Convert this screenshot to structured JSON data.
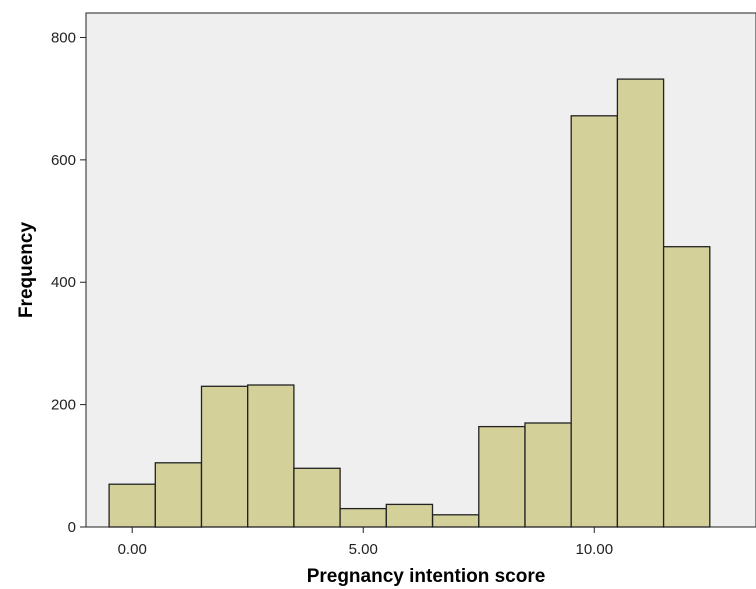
{
  "chart_data": {
    "type": "bar",
    "subtype": "histogram",
    "title": "",
    "xlabel": "Pregnancy intention score",
    "ylabel": "Frequency",
    "bin_width": 1,
    "bins": [
      {
        "start": -0.5,
        "end": 0.5,
        "value": 70
      },
      {
        "start": 0.5,
        "end": 1.5,
        "value": 105
      },
      {
        "start": 1.5,
        "end": 2.5,
        "value": 230
      },
      {
        "start": 2.5,
        "end": 3.5,
        "value": 232
      },
      {
        "start": 3.5,
        "end": 4.5,
        "value": 96
      },
      {
        "start": 4.5,
        "end": 5.5,
        "value": 30
      },
      {
        "start": 5.5,
        "end": 6.5,
        "value": 37
      },
      {
        "start": 6.5,
        "end": 7.5,
        "value": 20
      },
      {
        "start": 7.5,
        "end": 8.5,
        "value": 164
      },
      {
        "start": 8.5,
        "end": 9.5,
        "value": 170
      },
      {
        "start": 9.5,
        "end": 10.5,
        "value": 672
      },
      {
        "start": 10.5,
        "end": 11.5,
        "value": 732
      },
      {
        "start": 11.5,
        "end": 12.5,
        "value": 458
      }
    ],
    "xlim": [
      -1,
      13.5
    ],
    "ylim": [
      0,
      840
    ],
    "x_ticks": [
      {
        "value": 0,
        "label": "0.00"
      },
      {
        "value": 5,
        "label": "5.00"
      },
      {
        "value": 10,
        "label": "10.00"
      }
    ],
    "y_ticks": [
      {
        "value": 0,
        "label": "0"
      },
      {
        "value": 200,
        "label": "200"
      },
      {
        "value": 400,
        "label": "400"
      },
      {
        "value": 600,
        "label": "600"
      },
      {
        "value": 800,
        "label": "800"
      }
    ],
    "grid": false,
    "colors": {
      "bar_fill": "#d4d09a",
      "bar_stroke": "#222222",
      "plot_background": "#efefef",
      "page_background": "#ffffff"
    }
  }
}
